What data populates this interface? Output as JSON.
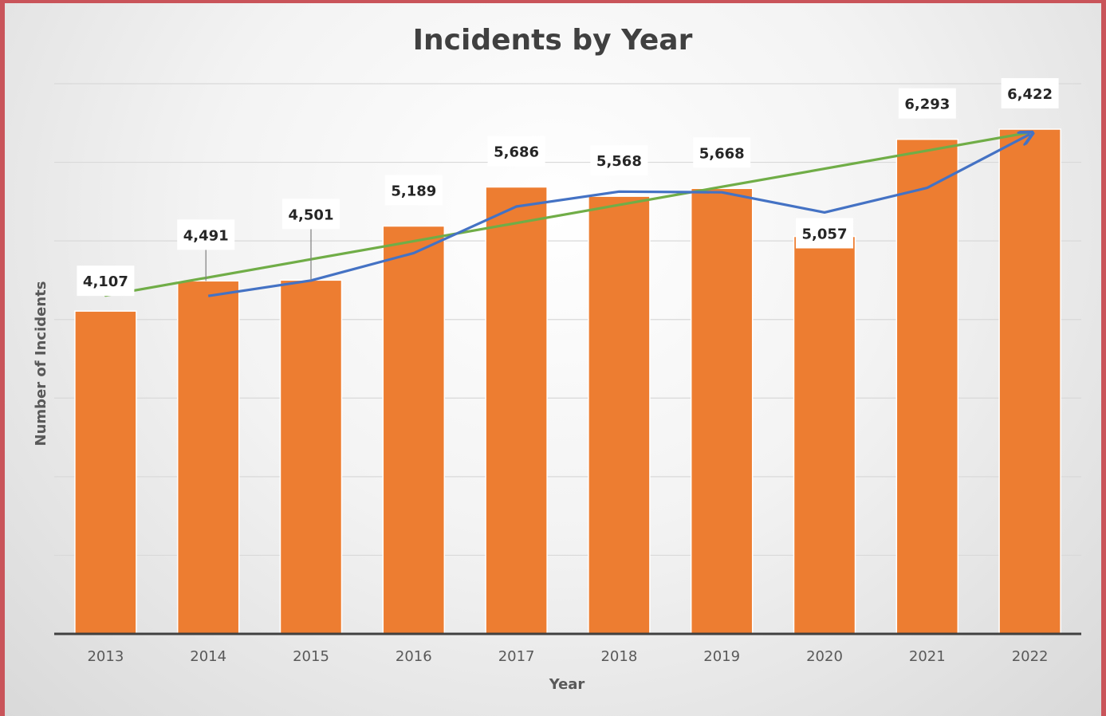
{
  "chart_data": {
    "type": "bar",
    "title": "Incidents by Year",
    "xlabel": "Year",
    "ylabel": "Number of Incidents",
    "categories": [
      "2013",
      "2014",
      "2015",
      "2016",
      "2017",
      "2018",
      "2019",
      "2020",
      "2021",
      "2022"
    ],
    "values": [
      4107,
      4491,
      4501,
      5189,
      5686,
      5568,
      5668,
      5057,
      6293,
      6422
    ],
    "data_labels": [
      "4,107",
      "4,491",
      "4,501",
      "5,189",
      "5,686",
      "5,568",
      "5,668",
      "5,057",
      "6,293",
      "6,422"
    ],
    "ylim": [
      0,
      7000
    ],
    "y_major_unit": 1000,
    "y_tick_labels_visible": false,
    "grid": true,
    "overlays": [
      {
        "type": "line",
        "kind": "moving-average",
        "period": 2,
        "color": "#4472c4",
        "values": [
          null,
          4299,
          4496,
          4845,
          5437.5,
          5627,
          5618,
          5362.5,
          5675,
          6357.5
        ],
        "arrow_end": true
      },
      {
        "type": "line",
        "kind": "linear-trendline",
        "color": "#70ad47",
        "start": 4305,
        "end": 6380
      }
    ],
    "colors": {
      "bar": "#ed7d31",
      "grid": "#d9d9d9",
      "axis": "#404040",
      "label_bg": "#ffffff"
    }
  }
}
